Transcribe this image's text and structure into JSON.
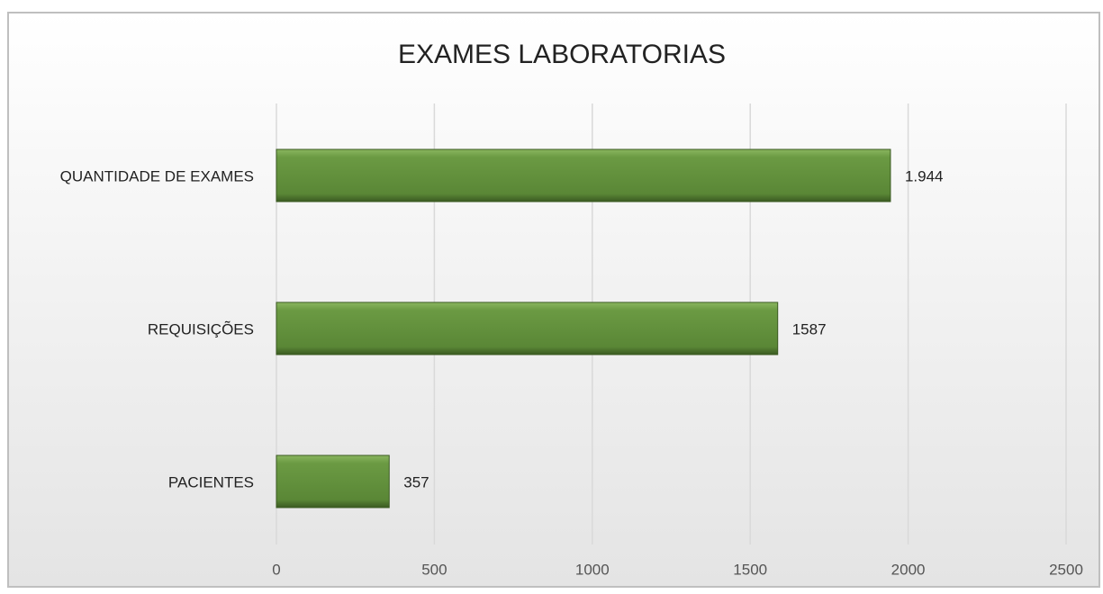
{
  "chart_data": {
    "type": "bar",
    "orientation": "horizontal",
    "title": "EXAMES LABORATORIAS",
    "categories": [
      "QUANTIDADE DE EXAMES",
      "REQUISIÇÕES",
      "PACIENTES"
    ],
    "values": [
      1944,
      1587,
      357
    ],
    "value_labels": [
      "1.944",
      "1587",
      "357"
    ],
    "color": "#5f8f3a",
    "xlim": [
      0,
      2500
    ],
    "xticks": [
      0,
      500,
      1000,
      1500,
      2000,
      2500
    ],
    "grid": true
  }
}
